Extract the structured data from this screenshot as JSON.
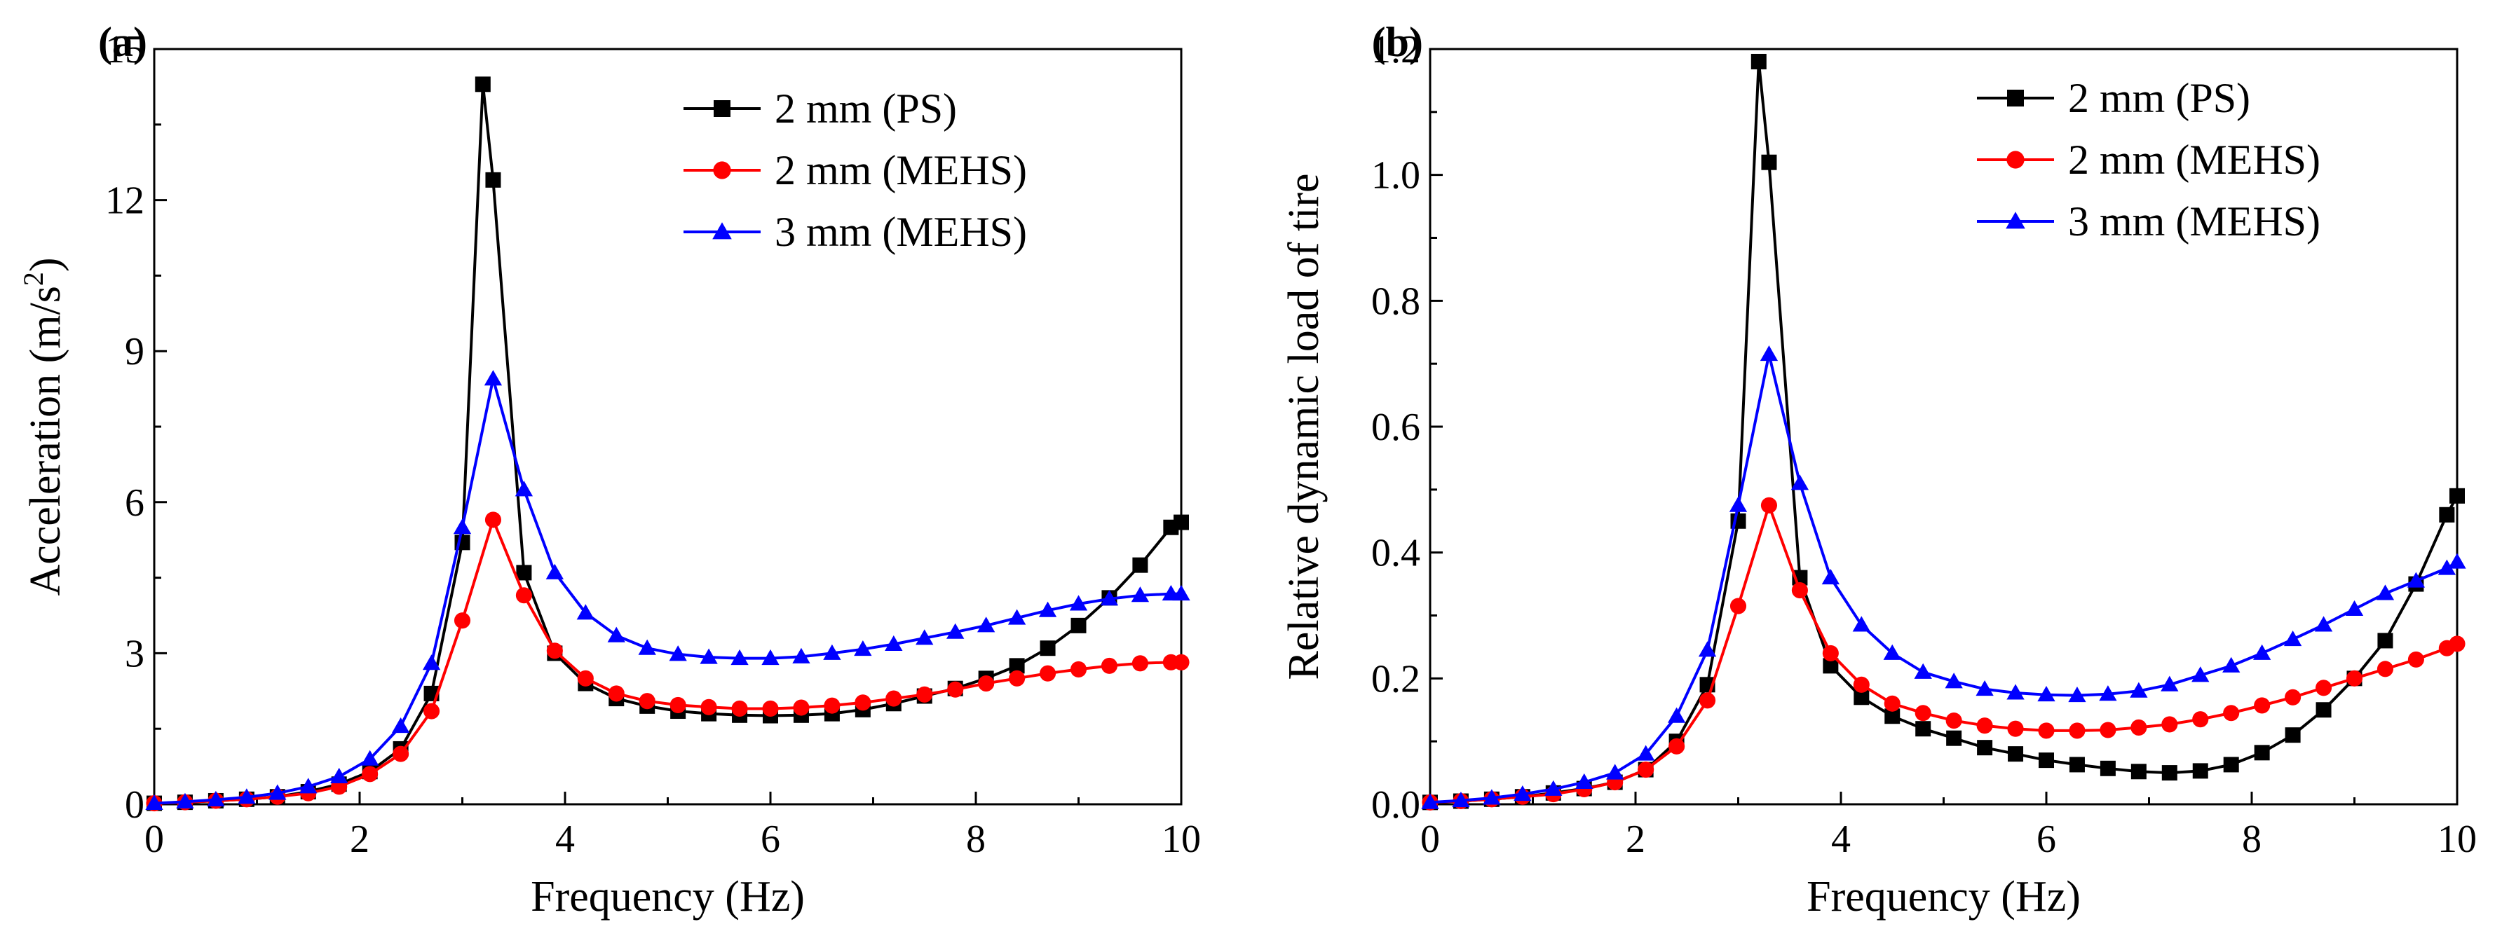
{
  "chart_data": [
    {
      "panel_label": "(a)",
      "type": "line",
      "xlabel": "Frequency (Hz)",
      "ylabel_main": "Acceleration (m/s",
      "ylabel_sup": "2",
      "ylabel_end": ")",
      "xlim": [
        0,
        10
      ],
      "ylim": [
        0,
        15
      ],
      "xticks": [
        "0",
        "2",
        "4",
        "6",
        "8",
        "10"
      ],
      "yticks": [
        "0",
        "3",
        "6",
        "9",
        "12",
        "15"
      ],
      "legend_position": "top-right",
      "grid": false,
      "series": [
        {
          "name": "2 mm (PS)",
          "color": "#000000",
          "marker": "square",
          "x": [
            0,
            0.3,
            0.6,
            0.9,
            1.2,
            1.5,
            1.8,
            2.1,
            2.4,
            2.7,
            3.0,
            3.2,
            3.3,
            3.6,
            3.9,
            4.2,
            4.5,
            4.8,
            5.1,
            5.4,
            5.7,
            6.0,
            6.3,
            6.6,
            6.9,
            7.2,
            7.5,
            7.8,
            8.1,
            8.4,
            8.7,
            9.0,
            9.3,
            9.6,
            9.9,
            10.0
          ],
          "y": [
            0.02,
            0.04,
            0.07,
            0.1,
            0.15,
            0.25,
            0.4,
            0.65,
            1.1,
            2.2,
            5.2,
            14.3,
            12.4,
            4.6,
            3.0,
            2.4,
            2.1,
            1.95,
            1.85,
            1.8,
            1.77,
            1.76,
            1.77,
            1.8,
            1.88,
            2.0,
            2.15,
            2.3,
            2.5,
            2.75,
            3.1,
            3.55,
            4.1,
            4.75,
            5.5,
            5.6
          ]
        },
        {
          "name": "2 mm (MEHS)",
          "color": "#ff0000",
          "marker": "circle",
          "x": [
            0,
            0.3,
            0.6,
            0.9,
            1.2,
            1.5,
            1.8,
            2.1,
            2.4,
            2.7,
            3.0,
            3.3,
            3.6,
            3.9,
            4.2,
            4.5,
            4.8,
            5.1,
            5.4,
            5.7,
            6.0,
            6.3,
            6.6,
            6.9,
            7.2,
            7.5,
            7.8,
            8.1,
            8.4,
            8.7,
            9.0,
            9.3,
            9.6,
            9.9,
            10.0
          ],
          "y": [
            0.02,
            0.04,
            0.07,
            0.1,
            0.15,
            0.22,
            0.35,
            0.6,
            1.0,
            1.85,
            3.65,
            5.65,
            4.15,
            3.05,
            2.5,
            2.2,
            2.05,
            1.97,
            1.93,
            1.9,
            1.9,
            1.92,
            1.96,
            2.02,
            2.1,
            2.18,
            2.28,
            2.4,
            2.5,
            2.6,
            2.68,
            2.75,
            2.8,
            2.82,
            2.82
          ]
        },
        {
          "name": "3 mm (MEHS)",
          "color": "#0000ff",
          "marker": "triangle",
          "x": [
            0,
            0.3,
            0.6,
            0.9,
            1.2,
            1.5,
            1.8,
            2.1,
            2.4,
            2.7,
            3.0,
            3.3,
            3.6,
            3.9,
            4.2,
            4.5,
            4.8,
            5.1,
            5.4,
            5.7,
            6.0,
            6.3,
            6.6,
            6.9,
            7.2,
            7.5,
            7.8,
            8.1,
            8.4,
            8.7,
            9.0,
            9.3,
            9.6,
            9.9,
            10.0
          ],
          "y": [
            0.02,
            0.05,
            0.09,
            0.14,
            0.22,
            0.35,
            0.55,
            0.9,
            1.55,
            2.8,
            5.5,
            8.45,
            6.25,
            4.6,
            3.8,
            3.35,
            3.1,
            2.98,
            2.92,
            2.9,
            2.9,
            2.93,
            3.0,
            3.08,
            3.18,
            3.3,
            3.42,
            3.55,
            3.7,
            3.85,
            3.98,
            4.08,
            4.15,
            4.18,
            4.18
          ]
        }
      ]
    },
    {
      "panel_label": "(b)",
      "type": "line",
      "xlabel": "Frequency (Hz)",
      "ylabel_main": "Relative dynamic load of tire",
      "ylabel_sup": "",
      "ylabel_end": "",
      "xlim": [
        0,
        10
      ],
      "ylim": [
        0,
        1.2
      ],
      "xticks": [
        "0",
        "2",
        "4",
        "6",
        "8",
        "10"
      ],
      "yticks": [
        "0.0",
        "0.2",
        "0.4",
        "0.6",
        "0.8",
        "1.0",
        "1.2"
      ],
      "legend_position": "top-right",
      "grid": false,
      "series": [
        {
          "name": "2 mm (PS)",
          "color": "#000000",
          "marker": "square",
          "x": [
            0,
            0.3,
            0.6,
            0.9,
            1.2,
            1.5,
            1.8,
            2.1,
            2.4,
            2.7,
            3.0,
            3.2,
            3.3,
            3.6,
            3.9,
            4.2,
            4.5,
            4.8,
            5.1,
            5.4,
            5.7,
            6.0,
            6.3,
            6.6,
            6.9,
            7.2,
            7.5,
            7.8,
            8.1,
            8.4,
            8.7,
            9.0,
            9.3,
            9.6,
            9.9,
            10.0
          ],
          "y": [
            0.003,
            0.005,
            0.008,
            0.012,
            0.018,
            0.025,
            0.035,
            0.055,
            0.1,
            0.19,
            0.45,
            1.18,
            1.02,
            0.36,
            0.22,
            0.17,
            0.14,
            0.12,
            0.105,
            0.09,
            0.08,
            0.07,
            0.063,
            0.057,
            0.052,
            0.05,
            0.053,
            0.063,
            0.082,
            0.11,
            0.15,
            0.2,
            0.26,
            0.35,
            0.46,
            0.49
          ]
        },
        {
          "name": "2 mm (MEHS)",
          "color": "#ff0000",
          "marker": "circle",
          "x": [
            0,
            0.3,
            0.6,
            0.9,
            1.2,
            1.5,
            1.8,
            2.1,
            2.4,
            2.7,
            3.0,
            3.3,
            3.6,
            3.9,
            4.2,
            4.5,
            4.8,
            5.1,
            5.4,
            5.7,
            6.0,
            6.3,
            6.6,
            6.9,
            7.2,
            7.5,
            7.8,
            8.1,
            8.4,
            8.7,
            9.0,
            9.3,
            9.6,
            9.9,
            10.0
          ],
          "y": [
            0.003,
            0.005,
            0.008,
            0.012,
            0.016,
            0.024,
            0.035,
            0.055,
            0.092,
            0.165,
            0.315,
            0.475,
            0.34,
            0.24,
            0.19,
            0.16,
            0.145,
            0.133,
            0.125,
            0.12,
            0.117,
            0.117,
            0.118,
            0.122,
            0.127,
            0.135,
            0.145,
            0.157,
            0.17,
            0.185,
            0.2,
            0.215,
            0.23,
            0.248,
            0.255
          ]
        },
        {
          "name": "3 mm (MEHS)",
          "color": "#0000ff",
          "marker": "triangle",
          "x": [
            0,
            0.3,
            0.6,
            0.9,
            1.2,
            1.5,
            1.8,
            2.1,
            2.4,
            2.7,
            3.0,
            3.3,
            3.6,
            3.9,
            4.2,
            4.5,
            4.8,
            5.1,
            5.4,
            5.7,
            6.0,
            6.3,
            6.6,
            6.9,
            7.2,
            7.5,
            7.8,
            8.1,
            8.4,
            8.7,
            9.0,
            9.3,
            9.6,
            9.9,
            10.0
          ],
          "y": [
            0.003,
            0.006,
            0.01,
            0.016,
            0.024,
            0.035,
            0.05,
            0.08,
            0.14,
            0.245,
            0.475,
            0.715,
            0.51,
            0.36,
            0.285,
            0.24,
            0.21,
            0.195,
            0.183,
            0.177,
            0.174,
            0.173,
            0.175,
            0.18,
            0.19,
            0.205,
            0.22,
            0.24,
            0.262,
            0.285,
            0.31,
            0.335,
            0.355,
            0.375,
            0.385
          ]
        }
      ]
    }
  ]
}
